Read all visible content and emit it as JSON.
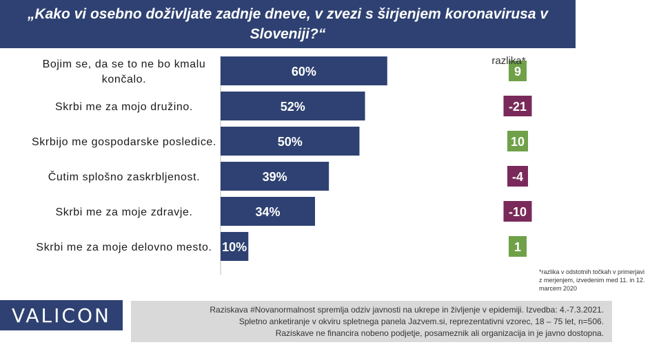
{
  "title": "„Kako vi osebno doživljate zadnje dneve, v zvezi s širjenjem koronavirusa v Sloveniji?“",
  "difference_header": "razlika*",
  "footnote": "*razlika v odstotnih točkah v primerjavi z merjenjem, izvedenim med 11. in 12. marcem 2020",
  "logo_text": "VALICON",
  "info": {
    "line1": "Raziskava #Novanormalnost spremlja odziv javnosti na ukrepe in življenje v epidemiji. Izvedba: 4.-7.3.2021.",
    "line2": "Spletno anketiranje v okviru spletnega panela Jazvem.si, reprezentativni vzorec, 18 – 75 let, n=506.",
    "line3": "Raziskave ne financira nobeno podjetje, posameznik ali organizacija in je javno dostopna."
  },
  "colors": {
    "bar": "#2e4172",
    "positive": "#70a048",
    "negative": "#7a2a5a"
  },
  "chart_data": {
    "type": "bar",
    "orientation": "horizontal",
    "categories": [
      [
        "Bojim se, da se to ne bo kmalu",
        "končalo."
      ],
      [
        "Skrbi me za mojo družino."
      ],
      [
        "Skrbijo me gospodarske posledice."
      ],
      [
        "Čutim splošno zaskrbljenost."
      ],
      [
        "Skrbi me za moje zdravje."
      ],
      [
        "Skrbi me za moje delovno mesto."
      ]
    ],
    "values": [
      60,
      52,
      50,
      39,
      34,
      10
    ],
    "value_labels": [
      "60%",
      "52%",
      "50%",
      "39%",
      "34%",
      "10%"
    ],
    "differences": [
      9,
      -21,
      10,
      -4,
      -10,
      1
    ],
    "difference_labels": [
      "9",
      "-21",
      "10",
      "-4",
      "-10",
      "1"
    ],
    "xlim": [
      0,
      100
    ],
    "grid": false
  }
}
